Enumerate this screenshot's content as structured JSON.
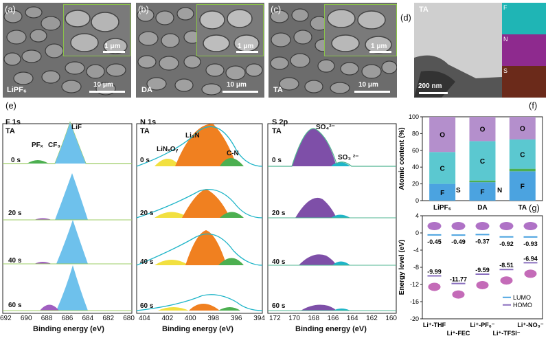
{
  "panels": {
    "a": {
      "label": "(a)",
      "sample": "LiPF₆",
      "scale_main": "10 μm",
      "scale_inset": "1 μm"
    },
    "b": {
      "label": "(b)",
      "sample": "DA",
      "scale_main": "10 μm",
      "scale_inset": "1 μm"
    },
    "c": {
      "label": "(c)",
      "sample": "TA",
      "scale_main": "10 μm",
      "scale_inset": "1 μm"
    },
    "d": {
      "label": "(d)",
      "sample": "TA",
      "scale": "200 nm",
      "maps": [
        "F",
        "N",
        "S"
      ]
    },
    "e": {
      "label": "(e)"
    },
    "f": {
      "label": "(f)"
    },
    "g": {
      "label": "(g)"
    }
  },
  "xps": {
    "times": [
      "0 s",
      "20 s",
      "40 s",
      "60 s"
    ],
    "xlabel": "Binding energy (eV)",
    "f1s": {
      "title": "F 1s",
      "sub": "TA",
      "ticks": [
        "692",
        "690",
        "688",
        "686",
        "684",
        "682",
        "680"
      ],
      "peaks": {
        "pf": "PFₓ",
        "cf": "CF₃",
        "lif": "LiF"
      }
    },
    "n1s": {
      "title": "N 1s",
      "sub": "TA",
      "ticks": [
        "404",
        "402",
        "400",
        "398",
        "396",
        "394"
      ],
      "peaks": {
        "linxoy": "LiNₓOᵧ",
        "li3n": "Li₃N",
        "cn": "C-N"
      }
    },
    "s2p": {
      "title": "S 2p",
      "sub": "TA",
      "ticks": [
        "172",
        "170",
        "168",
        "166",
        "164",
        "162",
        "160"
      ],
      "peaks": {
        "so4": "SO₄²⁻",
        "so3": "SO₃ ²⁻"
      }
    }
  },
  "chart_data": [
    {
      "type": "bar",
      "ylabel": "Atomic content (%)",
      "ylim": [
        0,
        100
      ],
      "yticks": [
        "0",
        "20",
        "40",
        "60",
        "80",
        "100"
      ],
      "categories": [
        "LiPF₆",
        "DA",
        "TA"
      ],
      "series": [
        {
          "name": "F",
          "values": [
            20,
            22,
            35
          ]
        },
        {
          "name": "S",
          "values": [
            0,
            2,
            0
          ]
        },
        {
          "name": "N",
          "values": [
            0,
            0,
            3
          ]
        },
        {
          "name": "C",
          "values": [
            38,
            47,
            35
          ]
        },
        {
          "name": "O",
          "values": [
            42,
            29,
            27
          ]
        }
      ],
      "annotations": [
        "S",
        "N"
      ],
      "colors": {
        "F": "#4ba3e0",
        "S": "#4caf50",
        "N": "#4caf50",
        "C": "#5bc8d0",
        "O": "#b48fcc"
      }
    },
    {
      "type": "scatter",
      "ylabel": "Energy level (eV)",
      "ylim": [
        -20,
        4
      ],
      "yticks": [
        "4",
        "0",
        "-4",
        "-8",
        "-12",
        "-16",
        "-20"
      ],
      "categories": [
        "Li⁺-THF",
        "Li⁺-FEC",
        "Li⁺-PF₆⁻",
        "Li⁺-TFSI⁻",
        "Li⁺-NO₃⁻"
      ],
      "lumo": [
        -0.45,
        -0.49,
        -0.37,
        -0.92,
        -0.93
      ],
      "homo": [
        -9.99,
        -11.77,
        -9.59,
        -8.51,
        -6.94
      ],
      "lumo_labels": [
        "-0.45",
        "-0.49",
        "-0.37",
        "-0.92",
        "-0.93"
      ],
      "homo_labels": [
        "-9.99",
        "-11.77",
        "-9.59",
        "-8.51",
        "-6.94"
      ],
      "legend": [
        {
          "name": "LUMO",
          "color": "#4ba3e0"
        },
        {
          "name": "HOMO",
          "color": "#8a6fbf"
        }
      ]
    }
  ]
}
